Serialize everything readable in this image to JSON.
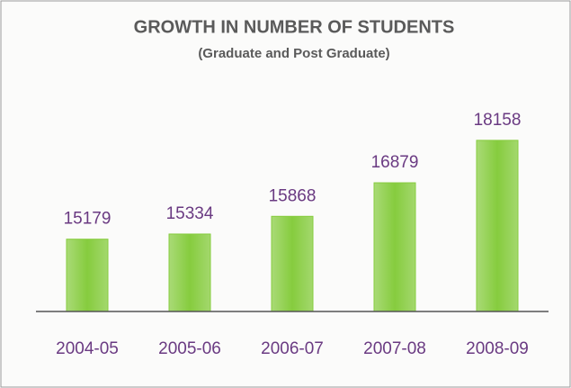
{
  "chart_data": {
    "type": "bar",
    "title": "GROWTH IN NUMBER OF STUDENTS",
    "subtitle": "(Graduate and Post Graduate)",
    "categories": [
      "2004-05",
      "2005-06",
      "2006-07",
      "2007-08",
      "2008-09"
    ],
    "values": [
      15179,
      15334,
      15868,
      16879,
      18158
    ],
    "color": "#86cc3e",
    "ylim": [
      13000,
      20000
    ]
  }
}
